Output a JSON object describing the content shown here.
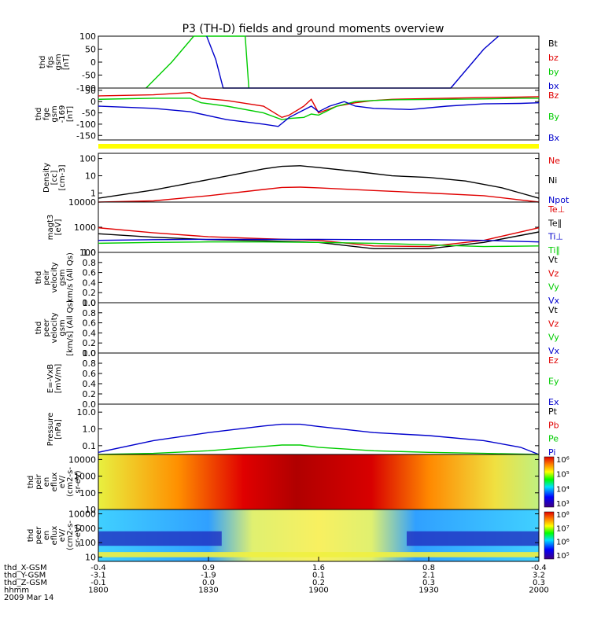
{
  "title": "P3 (TH-D) fields and ground moments overview",
  "colors": {
    "black": "#000000",
    "red": "#e00000",
    "green": "#00cc00",
    "blue": "#0000cc",
    "yellow": "#ffff00"
  },
  "chart_data": [
    {
      "type": "line",
      "panel": "fgs",
      "ylabel": [
        "thd",
        "fgs",
        "gsm",
        "[nT]"
      ],
      "yticks": [
        "100",
        "50",
        "0",
        "-50",
        "-100"
      ],
      "ylim": [
        -100,
        100
      ],
      "legend": [
        {
          "name": "Bt",
          "color": "black"
        },
        {
          "name": "bz",
          "color": "red"
        },
        {
          "name": "by",
          "color": "green"
        },
        {
          "name": "bx",
          "color": "blue"
        }
      ],
      "series": [
        {
          "name": "by",
          "color": "green",
          "x": [
            1813.0,
            1820.0,
            1826.0,
            1840.0,
            1841.0
          ],
          "y": [
            -100,
            0,
            100,
            100,
            -100
          ]
        },
        {
          "name": "bx",
          "color": "blue",
          "x": [
            1829.5,
            1832.0,
            1834.0,
            1936.0,
            1945.0,
            1949.0
          ],
          "y": [
            100,
            10,
            -100,
            -100,
            50,
            100
          ]
        }
      ]
    },
    {
      "type": "line",
      "panel": "fge",
      "ylabel": [
        "thd",
        "fge",
        "gsm",
        "-169",
        "[nT]"
      ],
      "yticks": [
        "50",
        "0",
        "-50",
        "-100",
        "-150"
      ],
      "ylim": [
        -170,
        60
      ],
      "legend": [
        {
          "name": "Bz",
          "color": "red"
        },
        {
          "name": "By",
          "color": "green"
        },
        {
          "name": "Bx",
          "color": "blue"
        }
      ],
      "series": [
        {
          "name": "Bz",
          "color": "red",
          "x": [
            1800,
            1815,
            1825,
            1828,
            1835,
            1845,
            1850,
            1852,
            1856,
            1858,
            1900,
            1905,
            1910,
            1915,
            1920,
            1935,
            1945,
            1955,
            2000
          ],
          "y": [
            25,
            30,
            40,
            15,
            5,
            -20,
            -70,
            -60,
            -20,
            10,
            -50,
            -20,
            -5,
            5,
            10,
            15,
            18,
            20,
            22
          ]
        },
        {
          "name": "By",
          "color": "green",
          "x": [
            1800,
            1815,
            1825,
            1828,
            1835,
            1845,
            1850,
            1852,
            1856,
            1858,
            1900,
            1905,
            1910,
            1915,
            1920,
            1935,
            1945,
            1955,
            2000
          ],
          "y": [
            10,
            15,
            15,
            -5,
            -20,
            -50,
            -80,
            -75,
            -70,
            -55,
            -60,
            -20,
            0,
            5,
            8,
            10,
            12,
            15,
            15
          ]
        },
        {
          "name": "Bx",
          "color": "blue",
          "x": [
            1800,
            1815,
            1825,
            1835,
            1845,
            1849,
            1852,
            1855,
            1858,
            1900,
            1903,
            1907,
            1910,
            1915,
            1925,
            1935,
            1945,
            1955,
            2000
          ],
          "y": [
            -20,
            -30,
            -45,
            -80,
            -100,
            -110,
            -70,
            -45,
            -20,
            -45,
            -20,
            0,
            -20,
            -30,
            -35,
            -20,
            -10,
            -8,
            -5
          ]
        }
      ]
    },
    {
      "type": "bar",
      "panel": "status",
      "color": "yellow"
    },
    {
      "type": "line",
      "panel": "density",
      "ylabel": [
        "Density",
        "[cc]",
        "[cm-3]"
      ],
      "yticks": [
        "100",
        "10",
        "1"
      ],
      "ylim": [
        0.3,
        200
      ],
      "log": true,
      "legend": [
        {
          "name": "Ne",
          "color": "red"
        },
        {
          "name": "Ni",
          "color": "black"
        },
        {
          "name": "Npot",
          "color": "blue"
        }
      ],
      "series": [
        {
          "name": "Ni",
          "color": "black",
          "x": [
            1800,
            1815,
            1830,
            1845,
            1850,
            1855,
            1900,
            1910,
            1920,
            1930,
            1940,
            1950,
            1955,
            2000
          ],
          "y": [
            0.5,
            1.5,
            6,
            25,
            35,
            38,
            30,
            18,
            10,
            8,
            5,
            2,
            1,
            0.5
          ]
        },
        {
          "name": "Ne",
          "color": "red",
          "x": [
            1800,
            1815,
            1830,
            1845,
            1850,
            1855,
            1900,
            1915,
            1930,
            1945,
            1955,
            2000
          ],
          "y": [
            0.25,
            0.35,
            0.7,
            1.6,
            2.1,
            2.2,
            2.0,
            1.4,
            1.0,
            0.7,
            0.4,
            0.25
          ]
        }
      ]
    },
    {
      "type": "line",
      "panel": "temperature",
      "ylabel": [
        "magt3",
        "[eV]"
      ],
      "yticks": [
        "10000",
        "1000",
        "100"
      ],
      "ylim": [
        100,
        10000
      ],
      "log": true,
      "legend": [
        {
          "name": "Te⊥",
          "color": "red"
        },
        {
          "name": "Te∥",
          "color": "black"
        },
        {
          "name": "Ti⊥",
          "color": "blue"
        },
        {
          "name": "Ti∥",
          "color": "green"
        }
      ],
      "series": [
        {
          "name": "Te⊥",
          "color": "red",
          "x": [
            1800,
            1815,
            1830,
            1845,
            1900,
            1915,
            1930,
            1945,
            2000
          ],
          "y": [
            950,
            600,
            420,
            350,
            300,
            180,
            170,
            300,
            950
          ]
        },
        {
          "name": "Te∥",
          "color": "black",
          "x": [
            1800,
            1815,
            1830,
            1845,
            1900,
            1915,
            1930,
            1945,
            2000
          ],
          "y": [
            550,
            400,
            320,
            290,
            250,
            140,
            140,
            250,
            650
          ]
        },
        {
          "name": "Ti⊥",
          "color": "blue",
          "x": [
            1800,
            1815,
            1830,
            1845,
            1900,
            1915,
            1930,
            1945,
            2000
          ],
          "y": [
            300,
            320,
            330,
            330,
            330,
            320,
            320,
            300,
            260
          ]
        },
        {
          "name": "Ti∥",
          "color": "green",
          "x": [
            1800,
            1815,
            1830,
            1845,
            1900,
            1915,
            1930,
            1945,
            2000
          ],
          "y": [
            230,
            250,
            260,
            260,
            250,
            230,
            200,
            170,
            180
          ]
        }
      ]
    },
    {
      "type": "line",
      "panel": "peir_velocity",
      "ylabel": [
        "thd",
        "peir",
        "velocity",
        "gsm",
        "km/s (All Qs)"
      ],
      "yticks": [
        "1.0",
        "0.8",
        "0.6",
        "0.4",
        "0.2",
        "0.0"
      ],
      "ylim": [
        0,
        1
      ],
      "legend": [
        {
          "name": "Vt",
          "color": "black"
        },
        {
          "name": "Vz",
          "color": "red"
        },
        {
          "name": "Vy",
          "color": "green"
        },
        {
          "name": "Vx",
          "color": "blue"
        }
      ],
      "series": []
    },
    {
      "type": "line",
      "panel": "peer_velocity",
      "ylabel": [
        "thd",
        "peer",
        "velocity",
        "gsm",
        "[km/s] (All Qs)"
      ],
      "yticks": [
        "1.0",
        "0.8",
        "0.6",
        "0.4",
        "0.2",
        "0.0"
      ],
      "ylim": [
        0,
        1
      ],
      "legend": [
        {
          "name": "Vt",
          "color": "black"
        },
        {
          "name": "Vz",
          "color": "red"
        },
        {
          "name": "Vy",
          "color": "green"
        },
        {
          "name": "Vx",
          "color": "blue"
        }
      ],
      "series": []
    },
    {
      "type": "line",
      "panel": "efield",
      "ylabel": [
        "E=-VxB",
        "[mV/m]"
      ],
      "yticks": [
        "1.0",
        "0.8",
        "0.6",
        "0.4",
        "0.2",
        "0.0"
      ],
      "ylim": [
        0,
        1
      ],
      "legend": [
        {
          "name": "Ez",
          "color": "red"
        },
        {
          "name": "Ey",
          "color": "green"
        },
        {
          "name": "Ex",
          "color": "blue"
        }
      ],
      "series": []
    },
    {
      "type": "line",
      "panel": "pressure",
      "ylabel": [
        "Pressure",
        "[nPa]"
      ],
      "yticks": [
        "10.0",
        "1.0",
        "0.1"
      ],
      "ylim": [
        0.03,
        30
      ],
      "log": true,
      "legend": [
        {
          "name": "Pt",
          "color": "black"
        },
        {
          "name": "Pb",
          "color": "red"
        },
        {
          "name": "Pe",
          "color": "green"
        },
        {
          "name": "Pi",
          "color": "blue"
        }
      ],
      "series": [
        {
          "name": "Pi",
          "color": "blue",
          "x": [
            1800,
            1815,
            1830,
            1845,
            1850,
            1855,
            1900,
            1915,
            1930,
            1945,
            1955,
            2000
          ],
          "y": [
            0.04,
            0.2,
            0.6,
            1.5,
            1.9,
            1.9,
            1.4,
            0.6,
            0.4,
            0.2,
            0.08,
            0.03
          ]
        },
        {
          "name": "Pe",
          "color": "green",
          "x": [
            1800,
            1815,
            1830,
            1845,
            1850,
            1855,
            1900,
            1915,
            1930,
            1945,
            2000
          ],
          "y": [
            0.03,
            0.035,
            0.05,
            0.09,
            0.11,
            0.11,
            0.08,
            0.05,
            0.04,
            0.035,
            0.03
          ]
        }
      ]
    },
    {
      "type": "heatmap",
      "panel": "peir_spectrogram",
      "ylabel": [
        "thd",
        "peir",
        "en",
        "eflux",
        "eV/",
        "(cm2-s-",
        "sr-eV)"
      ],
      "yticks": [
        "10000",
        "1000",
        "100",
        "10"
      ],
      "ylim": [
        10,
        20000
      ],
      "log": true,
      "colorbar": {
        "labels": [
          "10⁶",
          "10⁵",
          "10⁴",
          "10³"
        ],
        "range": [
          100,
          5000000
        ]
      }
    },
    {
      "type": "heatmap",
      "panel": "peer_spectrogram",
      "ylabel": [
        "thd",
        "peer",
        "en",
        "eflux",
        "eV/",
        "(cm2-s-",
        "sr-eV)"
      ],
      "yticks": [
        "10000",
        "1000",
        "100",
        "10"
      ],
      "ylim": [
        5,
        20000
      ],
      "log": true,
      "colorbar": {
        "labels": [
          "10⁸",
          "10⁷",
          "10⁶",
          "10⁵"
        ],
        "range": [
          80000,
          200000000
        ]
      }
    }
  ],
  "x_axis": {
    "rows": [
      {
        "label": "thd_X-GSM",
        "values": [
          "-0.4",
          "0.9",
          "1.6",
          "0.8",
          "-0.4"
        ]
      },
      {
        "label": "thd_Y-GSM",
        "values": [
          "-3.1",
          "-1.9",
          "0.1",
          "2.1",
          "3.2"
        ]
      },
      {
        "label": "thd_Z-GSM",
        "values": [
          "-0.1",
          "0.0",
          "0.2",
          "0.3",
          "0.3"
        ]
      },
      {
        "label": "hhmm",
        "values": [
          "1800",
          "1830",
          "1900",
          "1930",
          "2000"
        ]
      }
    ],
    "date": "2009 Mar 14",
    "range_min": [
      0,
      120
    ]
  }
}
